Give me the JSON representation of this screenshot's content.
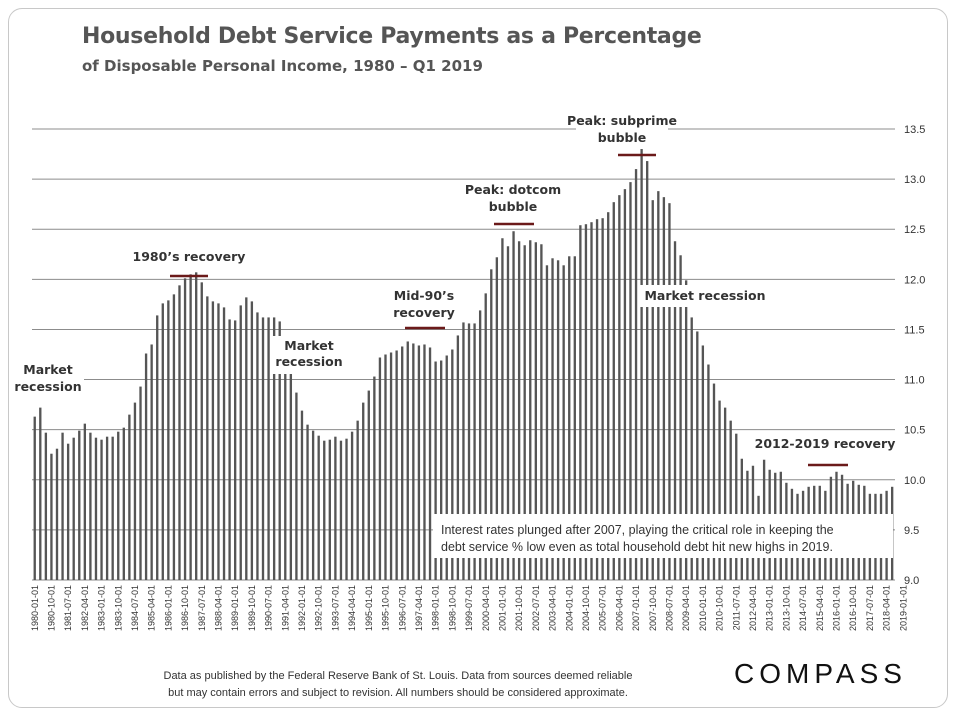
{
  "title": "Household Debt Service Payments as a Percentage",
  "subtitle": "of Disposable  Personal  Income, 1980 – Q1 2019",
  "footer": {
    "line1": "Data as published by the Federal Reserve Bank of St. Louis. Data from sources deemed reliable",
    "line2": "but may contain errors and subject to revision. All numbers should be considered approximate."
  },
  "logo": "COMPASS",
  "chart_data": {
    "type": "bar",
    "ylim": [
      9.0,
      13.5
    ],
    "yticks": [
      "9.0",
      "9.5",
      "10.0",
      "10.5",
      "11.0",
      "11.5",
      "12.0",
      "12.5",
      "13.0",
      "13.5"
    ],
    "ytick_values": [
      9.0,
      9.5,
      10.0,
      10.5,
      11.0,
      11.5,
      12.0,
      12.5,
      13.0,
      13.5
    ],
    "grid": "horizontal",
    "x_start": "1980-01-01",
    "x_frequency": "quarterly",
    "x_tick_labels": [
      "1980-01-01",
      "1980-10-01",
      "1981-07-01",
      "1982-04-01",
      "1983-01-01",
      "1983-10-01",
      "1984-07-01",
      "1985-04-01",
      "1986-01-01",
      "1986-10-01",
      "1987-07-01",
      "1988-04-01",
      "1989-01-01",
      "1989-10-01",
      "1990-07-01",
      "1991-04-01",
      "1992-01-01",
      "1992-10-01",
      "1993-07-01",
      "1994-04-01",
      "1995-01-01",
      "1995-10-01",
      "1996-07-01",
      "1997-04-01",
      "1998-01-01",
      "1998-10-01",
      "1999-07-01",
      "2000-04-01",
      "2001-01-01",
      "2001-10-01",
      "2002-07-01",
      "2003-04-01",
      "2004-01-01",
      "2004-10-01",
      "2005-07-01",
      "2006-04-01",
      "2007-01-01",
      "2007-10-01",
      "2008-07-01",
      "2009-04-01",
      "2010-01-01",
      "2010-10-01",
      "2011-07-01",
      "2012-04-01",
      "2013-01-01",
      "2013-10-01",
      "2014-07-01",
      "2015-04-01",
      "2016-01-01",
      "2016-10-01",
      "2017-07-01",
      "2018-04-01",
      "2019-01-01"
    ],
    "values": [
      10.63,
      10.72,
      10.47,
      10.26,
      10.31,
      10.47,
      10.36,
      10.42,
      10.49,
      10.56,
      10.47,
      10.42,
      10.4,
      10.43,
      10.43,
      10.48,
      10.52,
      10.65,
      10.77,
      10.93,
      11.26,
      11.35,
      11.64,
      11.76,
      11.79,
      11.85,
      11.94,
      12.01,
      12.05,
      12.07,
      11.97,
      11.83,
      11.78,
      11.76,
      11.72,
      11.6,
      11.59,
      11.74,
      11.82,
      11.78,
      11.67,
      11.62,
      11.62,
      11.62,
      11.58,
      11.4,
      11.17,
      10.87,
      10.69,
      10.55,
      10.49,
      10.44,
      10.39,
      10.4,
      10.43,
      10.39,
      10.41,
      10.48,
      10.59,
      10.77,
      10.89,
      11.03,
      11.22,
      11.25,
      11.27,
      11.29,
      11.33,
      11.38,
      11.36,
      11.34,
      11.35,
      11.32,
      11.18,
      11.19,
      11.24,
      11.3,
      11.44,
      11.57,
      11.56,
      11.56,
      11.69,
      11.86,
      12.1,
      12.22,
      12.41,
      12.33,
      12.48,
      12.38,
      12.34,
      12.39,
      12.37,
      12.35,
      12.14,
      12.21,
      12.19,
      12.14,
      12.23,
      12.23,
      12.54,
      12.55,
      12.57,
      12.6,
      12.61,
      12.67,
      12.77,
      12.84,
      12.9,
      12.97,
      13.1,
      13.3,
      13.18,
      12.79,
      12.88,
      12.82,
      12.76,
      12.38,
      12.24,
      11.99,
      11.62,
      11.48,
      11.34,
      11.15,
      10.96,
      10.79,
      10.72,
      10.59,
      10.46,
      10.21,
      10.09,
      10.14,
      9.84,
      10.2,
      10.1,
      10.07,
      10.08,
      9.97,
      9.91,
      9.86,
      9.89,
      9.93,
      9.94,
      9.94,
      9.89,
      10.03,
      10.08,
      10.05,
      9.96,
      9.99,
      9.95,
      9.94,
      9.86,
      9.86,
      9.86,
      9.89,
      9.93
    ],
    "annotations": [
      {
        "label_lines": [
          "Market",
          "recession"
        ]
      },
      {
        "label_lines": [
          "1980’s recovery"
        ]
      },
      {
        "label_lines": [
          "Market",
          "recession"
        ]
      },
      {
        "label_lines": [
          "Mid-90’s",
          "recovery"
        ]
      },
      {
        "label_lines": [
          "Peak: dotcom",
          "bubble"
        ]
      },
      {
        "label_lines": [
          "Peak: subprime",
          "bubble"
        ]
      },
      {
        "label_lines": [
          "Market recession"
        ]
      },
      {
        "label_lines": [
          "2012-2019  recovery"
        ]
      }
    ],
    "note": [
      "Interest rates plunged after 2007, playing the critical role in keeping the",
      "debt service % low even as total household debt hit new highs in 2019."
    ],
    "colors": {
      "bar": "#555555",
      "marker": "#6b1a1a",
      "label": "#333333",
      "grid": "#8c8c8c"
    }
  }
}
